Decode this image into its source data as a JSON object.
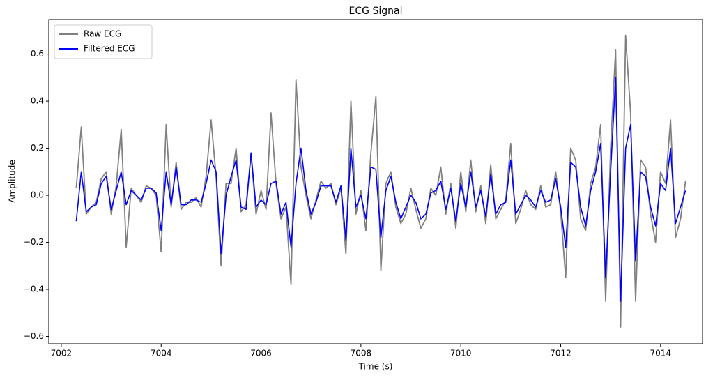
{
  "chart_data": {
    "type": "line",
    "title": "ECG Signal",
    "x_label": "Time (s)",
    "y_label": "Amplitude",
    "x": [
      7002.3,
      7002.4,
      7002.5,
      7002.6,
      7002.7,
      7002.8,
      7002.9,
      7003.0,
      7003.1,
      7003.2,
      7003.3,
      7003.4,
      7003.5,
      7003.6,
      7003.7,
      7003.8,
      7003.9,
      7004.0,
      7004.1,
      7004.2,
      7004.3,
      7004.4,
      7004.5,
      7004.6,
      7004.7,
      7004.8,
      7004.9,
      7005.0,
      7005.1,
      7005.2,
      7005.3,
      7005.4,
      7005.5,
      7005.6,
      7005.7,
      7005.8,
      7005.9,
      7006.0,
      7006.1,
      7006.2,
      7006.3,
      7006.4,
      7006.5,
      7006.6,
      7006.7,
      7006.8,
      7006.9,
      7007.0,
      7007.1,
      7007.2,
      7007.3,
      7007.4,
      7007.5,
      7007.6,
      7007.7,
      7007.8,
      7007.9,
      7008.0,
      7008.1,
      7008.2,
      7008.3,
      7008.4,
      7008.5,
      7008.6,
      7008.7,
      7008.8,
      7008.9,
      7009.0,
      7009.1,
      7009.2,
      7009.3,
      7009.4,
      7009.5,
      7009.6,
      7009.7,
      7009.8,
      7009.9,
      7010.0,
      7010.1,
      7010.2,
      7010.3,
      7010.4,
      7010.5,
      7010.6,
      7010.7,
      7010.8,
      7010.9,
      7011.0,
      7011.1,
      7011.2,
      7011.3,
      7011.4,
      7011.5,
      7011.6,
      7011.7,
      7011.8,
      7011.9,
      7012.0,
      7012.1,
      7012.2,
      7012.3,
      7012.4,
      7012.5,
      7012.6,
      7012.7,
      7012.8,
      7012.9,
      7013.0,
      7013.1,
      7013.2,
      7013.3,
      7013.4,
      7013.5,
      7013.6,
      7013.7,
      7013.8,
      7013.9,
      7014.0,
      7014.1,
      7014.2,
      7014.3,
      7014.4,
      7014.5
    ],
    "series": [
      {
        "name": "Raw ECG",
        "color": "#808080",
        "values": [
          0.03,
          0.29,
          -0.08,
          -0.05,
          -0.03,
          0.07,
          0.1,
          -0.08,
          0.04,
          0.28,
          -0.22,
          0.03,
          0.0,
          -0.03,
          0.04,
          0.03,
          0.0,
          -0.24,
          0.3,
          -0.05,
          0.14,
          -0.06,
          -0.03,
          -0.03,
          -0.01,
          -0.05,
          0.08,
          0.32,
          0.08,
          -0.3,
          0.05,
          0.05,
          0.2,
          -0.07,
          -0.04,
          0.17,
          -0.08,
          0.02,
          -0.06,
          0.35,
          0.05,
          -0.1,
          -0.05,
          -0.38,
          0.49,
          0.12,
          0.0,
          -0.1,
          -0.02,
          0.06,
          0.03,
          0.05,
          -0.04,
          0.03,
          -0.25,
          0.4,
          -0.08,
          0.02,
          -0.15,
          0.18,
          0.42,
          -0.32,
          0.05,
          0.1,
          -0.05,
          -0.12,
          -0.08,
          0.03,
          -0.06,
          -0.14,
          -0.1,
          0.03,
          0.0,
          0.12,
          -0.08,
          0.05,
          -0.14,
          0.1,
          -0.07,
          0.15,
          -0.07,
          0.04,
          -0.12,
          0.13,
          -0.1,
          -0.06,
          -0.02,
          0.22,
          -0.12,
          -0.06,
          0.02,
          -0.04,
          -0.06,
          0.04,
          -0.05,
          -0.04,
          0.1,
          -0.07,
          -0.35,
          0.2,
          0.15,
          -0.1,
          -0.15,
          0.05,
          0.12,
          0.3,
          -0.45,
          0.2,
          0.62,
          -0.56,
          0.68,
          0.35,
          -0.45,
          0.15,
          0.12,
          -0.08,
          -0.2,
          0.1,
          0.05,
          0.32,
          -0.18,
          -0.1,
          0.06
        ]
      },
      {
        "name": "Filtered ECG",
        "color": "#0000ff",
        "values": [
          -0.11,
          0.1,
          -0.07,
          -0.05,
          -0.04,
          0.05,
          0.08,
          -0.06,
          0.02,
          0.1,
          -0.04,
          0.02,
          0.0,
          -0.02,
          0.03,
          0.03,
          0.01,
          -0.15,
          0.1,
          -0.04,
          0.12,
          -0.04,
          -0.04,
          -0.02,
          -0.02,
          -0.03,
          0.05,
          0.15,
          0.1,
          -0.25,
          0.0,
          0.08,
          0.15,
          -0.05,
          -0.06,
          0.18,
          -0.05,
          -0.02,
          -0.04,
          0.05,
          0.06,
          -0.08,
          -0.03,
          -0.22,
          0.05,
          0.2,
          0.02,
          -0.08,
          -0.03,
          0.04,
          0.04,
          0.04,
          -0.03,
          0.04,
          -0.19,
          0.2,
          -0.05,
          0.0,
          -0.1,
          0.12,
          0.11,
          -0.18,
          0.02,
          0.08,
          -0.03,
          -0.1,
          -0.05,
          0.0,
          -0.03,
          -0.1,
          -0.08,
          0.01,
          0.02,
          0.06,
          -0.06,
          0.03,
          -0.11,
          0.05,
          -0.05,
          0.1,
          -0.05,
          0.02,
          -0.09,
          0.09,
          -0.08,
          -0.04,
          -0.03,
          0.15,
          -0.08,
          -0.04,
          0.0,
          -0.02,
          -0.05,
          0.02,
          -0.03,
          -0.02,
          0.07,
          -0.05,
          -0.22,
          0.14,
          0.12,
          -0.05,
          -0.13,
          0.02,
          0.1,
          0.22,
          -0.35,
          0.1,
          0.5,
          -0.45,
          0.2,
          0.3,
          -0.28,
          0.1,
          0.08,
          -0.05,
          -0.13,
          0.05,
          0.02,
          0.2,
          -0.12,
          -0.05,
          0.02
        ]
      }
    ],
    "xlim": [
      7001.75,
      7014.84
    ],
    "ylim": [
      -0.631,
      0.747
    ],
    "xticks": [
      7002,
      7004,
      7006,
      7008,
      7010,
      7012,
      7014
    ],
    "yticks": [
      {
        "value": -0.6,
        "label": "−0.6"
      },
      {
        "value": -0.4,
        "label": "−0.4"
      },
      {
        "value": -0.2,
        "label": "−0.2"
      },
      {
        "value": 0,
        "label": "0.0"
      },
      0.2,
      0.4,
      0.6
    ],
    "legend": "upper left"
  }
}
